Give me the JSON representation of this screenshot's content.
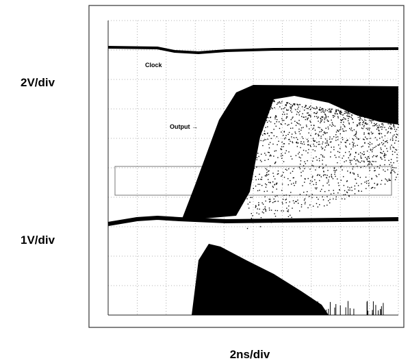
{
  "scope": {
    "top_scale": "2V/div",
    "bottom_scale": "1V/div",
    "time_scale": "2ns/div",
    "clock_label": "Clock",
    "output_label": "Output →"
  }
}
